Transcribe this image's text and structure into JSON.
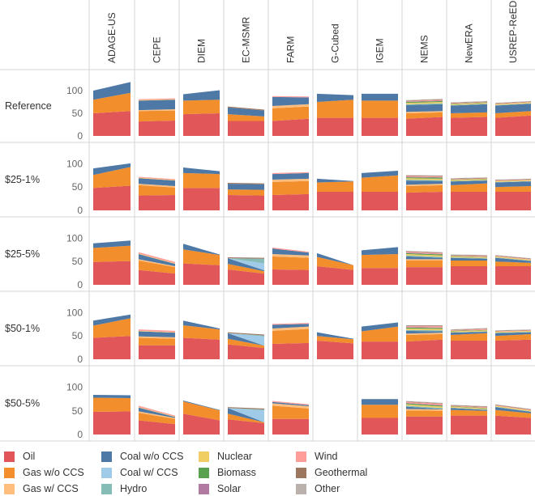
{
  "chart_data": {
    "type": "area",
    "subtype": "stacked-area small multiples",
    "models": [
      "ADAGE-US",
      "CEPE",
      "DIEM",
      "EC-MSMR",
      "FARM",
      "G-Cubed",
      "IGEM",
      "NEMS",
      "NewERA",
      "USREP-ReEDS"
    ],
    "scenarios": [
      "Reference",
      "$25-1%",
      "$25-5%",
      "$50-1%",
      "$50-5%"
    ],
    "y_ticks": [
      0,
      50,
      100
    ],
    "ylim": [
      0,
      125
    ],
    "series": [
      {
        "name": "Oil",
        "color": "#e15759"
      },
      {
        "name": "Gas w/o CCS",
        "color": "#f28e2b"
      },
      {
        "name": "Gas w/ CCS",
        "color": "#ffbe7d"
      },
      {
        "name": "Coal w/o CCS",
        "color": "#4e79a7"
      },
      {
        "name": "Coal w/ CCS",
        "color": "#a0cbe8"
      },
      {
        "name": "Hydro",
        "color": "#86bcb6"
      },
      {
        "name": "Nuclear",
        "color": "#f1ce63"
      },
      {
        "name": "Biomass",
        "color": "#59a14f"
      },
      {
        "name": "Solar",
        "color": "#b07aa1"
      },
      {
        "name": "Wind",
        "color": "#ff9d9a"
      },
      {
        "name": "Geothermal",
        "color": "#9d7660"
      },
      {
        "name": "Other",
        "color": "#bab0ac"
      }
    ],
    "panels": {
      "ADAGE-US": {
        "Reference": [
          [
            50,
            30,
            0,
            20
          ],
          [
            55,
            40,
            0,
            24
          ]
        ],
        "$25-1%": [
          [
            48,
            28,
            0,
            14
          ],
          [
            53,
            40,
            0,
            8
          ]
        ],
        "$25-5%": [
          [
            49,
            30,
            0,
            10
          ],
          [
            51,
            33,
            0,
            11
          ]
        ],
        "$50-1%": [
          [
            46,
            26,
            0,
            11
          ],
          [
            50,
            38,
            0,
            8
          ]
        ],
        "$50-5%": [
          [
            48,
            30,
            0,
            6
          ],
          [
            49,
            28,
            0,
            6
          ]
        ]
      },
      "CEPE": {
        "Reference": [
          [
            32,
            23,
            2,
            21,
            0,
            0,
            1,
            0,
            0,
            2
          ],
          [
            34,
            22,
            3,
            21,
            0,
            0,
            1,
            0,
            0,
            2
          ]
        ],
        "$25-1%": [
          [
            32,
            22,
            3,
            12,
            0,
            0,
            1,
            0,
            0,
            2
          ],
          [
            33,
            16,
            3,
            12,
            0,
            0,
            1,
            0,
            0,
            2
          ]
        ],
        "$25-5%": [
          [
            32,
            20,
            3,
            11,
            0,
            0,
            1,
            0,
            0,
            3
          ],
          [
            24,
            14,
            2,
            5,
            0,
            0,
            1,
            0,
            0,
            3
          ]
        ],
        "$50-1%": [
          [
            30,
            16,
            3,
            11,
            0,
            0,
            1,
            0,
            0,
            3
          ],
          [
            30,
            14,
            3,
            10,
            0,
            0,
            1,
            0,
            0,
            3
          ]
        ],
        "$50-5%": [
          [
            30,
            16,
            3,
            8,
            0,
            0,
            1,
            0,
            0,
            3
          ],
          [
            22,
            11,
            2,
            2,
            0,
            0,
            1,
            0,
            0,
            2
          ]
        ]
      },
      "DIEM": {
        "Reference": [
          [
            48,
            30,
            0,
            14
          ],
          [
            50,
            30,
            0,
            21
          ]
        ],
        "$25-1%": [
          [
            48,
            32,
            0,
            12
          ],
          [
            48,
            30,
            0,
            6
          ]
        ],
        "$25-5%": [
          [
            46,
            30,
            0,
            12
          ],
          [
            42,
            22,
            0,
            1
          ]
        ],
        "$50-1%": [
          [
            46,
            27,
            0,
            10
          ],
          [
            42,
            22,
            0,
            2
          ]
        ],
        "$50-5%": [
          [
            44,
            26,
            0,
            2
          ],
          [
            30,
            21,
            0,
            1
          ]
        ]
      },
      "EC-MSMR": {
        "Reference": [
          [
            33,
            15,
            0,
            15,
            0,
            0,
            0,
            0,
            0,
            0,
            2
          ],
          [
            33,
            10,
            0,
            13,
            0,
            0,
            0,
            0,
            0,
            0,
            2
          ]
        ],
        "$25-1%": [
          [
            33,
            12,
            0,
            12,
            0,
            0,
            0,
            0,
            0,
            0,
            2
          ],
          [
            32,
            12,
            0,
            12,
            0,
            0,
            0,
            0,
            0,
            0,
            2
          ]
        ],
        "$25-5%": [
          [
            33,
            12,
            0,
            12,
            0,
            0,
            0,
            0,
            0,
            0,
            2
          ],
          [
            24,
            5,
            0,
            2,
            15,
            10,
            0,
            0,
            0,
            0,
            2
          ]
        ],
        "$50-1%": [
          [
            32,
            12,
            0,
            12,
            0,
            0,
            0,
            0,
            0,
            0,
            2
          ],
          [
            24,
            5,
            0,
            0,
            20,
            2,
            0,
            0,
            0,
            0,
            2
          ]
        ],
        "$50-5%": [
          [
            32,
            12,
            0,
            12,
            0,
            0,
            0,
            0,
            0,
            0,
            2
          ],
          [
            24,
            2,
            0,
            0,
            25,
            2,
            0,
            0,
            0,
            0,
            2
          ]
        ]
      },
      "FARM": {
        "Reference": [
          [
            33,
            28,
            5,
            20,
            0,
            0,
            0,
            0,
            0,
            2
          ],
          [
            38,
            27,
            5,
            15,
            0,
            0,
            0,
            0,
            0,
            2
          ]
        ],
        "$25-1%": [
          [
            33,
            28,
            5,
            12,
            0,
            0,
            0,
            0,
            0,
            2
          ],
          [
            35,
            28,
            5,
            12,
            0,
            0,
            0,
            0,
            0,
            2
          ]
        ],
        "$25-5%": [
          [
            33,
            28,
            5,
            12,
            0,
            0,
            0,
            0,
            0,
            2
          ],
          [
            32,
            26,
            5,
            6,
            0,
            0,
            0,
            0,
            0,
            2
          ]
        ],
        "$50-1%": [
          [
            33,
            28,
            5,
            8,
            0,
            0,
            0,
            0,
            0,
            2
          ],
          [
            35,
            30,
            5,
            6,
            0,
            0,
            0,
            0,
            0,
            2
          ]
        ],
        "$50-5%": [
          [
            33,
            28,
            5,
            3,
            0,
            0,
            0,
            0,
            0,
            2
          ],
          [
            33,
            22,
            5,
            2,
            0,
            0,
            0,
            0,
            0,
            2
          ]
        ]
      },
      "G-Cubed": {
        "Reference": [
          [
            40,
            35,
            0,
            18
          ],
          [
            40,
            40,
            0,
            10
          ]
        ],
        "$25-1%": [
          [
            40,
            20,
            0,
            8
          ],
          [
            40,
            22,
            0,
            1
          ]
        ],
        "$25-5%": [
          [
            40,
            20,
            0,
            8
          ],
          [
            32,
            10,
            0,
            0
          ]
        ],
        "$50-1%": [
          [
            40,
            10,
            0,
            8
          ],
          [
            34,
            9,
            0,
            1
          ]
        ],
        "$50-5%": null
      },
      "IGEM": {
        "Reference": [
          [
            40,
            38,
            0,
            15
          ],
          [
            40,
            38,
            0,
            15
          ]
        ],
        "$25-1%": [
          [
            40,
            30,
            0,
            10
          ],
          [
            40,
            35,
            0,
            10
          ]
        ],
        "$25-5%": [
          [
            36,
            28,
            0,
            10
          ],
          [
            36,
            30,
            0,
            15
          ]
        ],
        "$50-1%": [
          [
            38,
            22,
            0,
            10
          ],
          [
            38,
            32,
            0,
            9
          ]
        ],
        "$50-5%": [
          [
            35,
            28,
            0,
            12
          ],
          [
            35,
            28,
            0,
            12
          ]
        ]
      },
      "NEMS": {
        "Reference": [
          [
            38,
            12,
            3,
            15,
            0,
            2,
            3,
            2,
            1,
            1,
            1,
            1
          ],
          [
            42,
            10,
            3,
            15,
            0,
            2,
            3,
            2,
            1,
            2,
            1,
            1
          ]
        ],
        "$25-1%": [
          [
            38,
            14,
            3,
            9,
            0,
            2,
            3,
            2,
            1,
            2,
            1,
            1
          ],
          [
            40,
            14,
            3,
            6,
            0,
            2,
            3,
            2,
            1,
            2,
            1,
            1
          ]
        ],
        "$25-5%": [
          [
            38,
            14,
            3,
            6,
            0,
            2,
            3,
            2,
            1,
            2,
            1,
            1
          ],
          [
            38,
            14,
            3,
            3,
            0,
            2,
            3,
            2,
            1,
            2,
            1,
            1
          ]
        ],
        "$50-1%": [
          [
            38,
            14,
            3,
            6,
            0,
            2,
            3,
            2,
            1,
            2,
            1,
            1
          ],
          [
            42,
            12,
            3,
            3,
            0,
            2,
            3,
            2,
            1,
            3,
            1,
            1
          ]
        ],
        "$50-5%": [
          [
            38,
            13,
            3,
            5,
            0,
            2,
            3,
            2,
            1,
            2,
            1,
            1
          ],
          [
            38,
            12,
            3,
            1,
            0,
            2,
            3,
            2,
            1,
            3,
            1,
            1
          ]
        ]
      },
      "NewERA": {
        "Reference": [
          [
            40,
            10,
            0,
            17,
            0,
            1,
            2,
            1,
            0,
            1,
            1,
            1
          ],
          [
            42,
            10,
            0,
            18,
            0,
            1,
            2,
            1,
            0,
            1,
            1,
            1
          ]
        ],
        "$25-1%": [
          [
            40,
            14,
            0,
            8,
            0,
            1,
            2,
            1,
            0,
            1,
            1,
            1
          ],
          [
            40,
            18,
            0,
            6,
            0,
            1,
            2,
            1,
            0,
            1,
            1,
            1
          ]
        ],
        "$25-5%": [
          [
            40,
            12,
            0,
            6,
            0,
            1,
            2,
            1,
            0,
            1,
            1,
            1
          ],
          [
            40,
            12,
            0,
            4,
            0,
            1,
            2,
            1,
            0,
            2,
            1,
            1
          ]
        ],
        "$50-1%": [
          [
            40,
            12,
            0,
            5,
            0,
            1,
            2,
            1,
            0,
            1,
            1,
            1
          ],
          [
            40,
            16,
            0,
            3,
            0,
            1,
            2,
            1,
            0,
            2,
            1,
            1
          ]
        ],
        "$50-5%": [
          [
            40,
            12,
            0,
            4,
            0,
            1,
            2,
            1,
            0,
            1,
            1,
            1
          ],
          [
            40,
            10,
            0,
            2,
            0,
            1,
            2,
            1,
            0,
            2,
            1,
            1
          ]
        ]
      },
      "USREP-ReEDS": {
        "Reference": [
          [
            40,
            10,
            0,
            17,
            0,
            1,
            2,
            0,
            0,
            1,
            1,
            1
          ],
          [
            45,
            10,
            0,
            16,
            0,
            1,
            2,
            0,
            0,
            1,
            1,
            1
          ]
        ],
        "$25-1%": [
          [
            40,
            10,
            0,
            10,
            0,
            1,
            2,
            0,
            0,
            1,
            1,
            1
          ],
          [
            40,
            12,
            0,
            10,
            0,
            1,
            2,
            0,
            0,
            1,
            1,
            1
          ]
        ],
        "$25-5%": [
          [
            40,
            10,
            0,
            8,
            0,
            1,
            2,
            0,
            0,
            1,
            1,
            1
          ],
          [
            40,
            7,
            0,
            4,
            0,
            1,
            2,
            0,
            0,
            1,
            1,
            1
          ]
        ],
        "$50-1%": [
          [
            40,
            10,
            0,
            6,
            0,
            1,
            2,
            0,
            0,
            1,
            1,
            1
          ],
          [
            42,
            12,
            0,
            4,
            0,
            1,
            2,
            0,
            0,
            1,
            1,
            1
          ]
        ],
        "$50-5%": [
          [
            40,
            12,
            0,
            6,
            0,
            1,
            2,
            0,
            0,
            1,
            1,
            1
          ],
          [
            35,
            10,
            0,
            3,
            0,
            1,
            2,
            0,
            0,
            1,
            1,
            1
          ]
        ]
      }
    }
  },
  "legend": [
    {
      "name": "Oil",
      "color": "#e15759"
    },
    {
      "name": "Coal w/o CCS",
      "color": "#4e79a7"
    },
    {
      "name": "Nuclear",
      "color": "#f1ce63"
    },
    {
      "name": "Wind",
      "color": "#ff9d9a"
    },
    {
      "name": "Gas w/o CCS",
      "color": "#f28e2b"
    },
    {
      "name": "Coal w/ CCS",
      "color": "#a0cbe8"
    },
    {
      "name": "Biomass",
      "color": "#59a14f"
    },
    {
      "name": "Geothermal",
      "color": "#9d7660"
    },
    {
      "name": "Gas w/ CCS",
      "color": "#ffbe7d"
    },
    {
      "name": "Hydro",
      "color": "#86bcb6"
    },
    {
      "name": "Solar",
      "color": "#b07aa1"
    },
    {
      "name": "Other",
      "color": "#bab0ac"
    }
  ]
}
